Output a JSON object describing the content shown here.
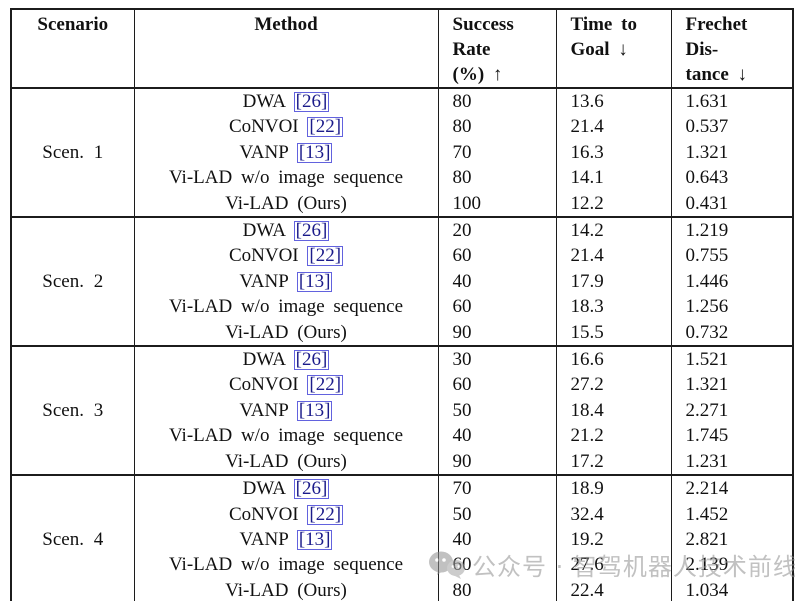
{
  "table": {
    "headers": {
      "scenario": "Scenario",
      "method": "Method",
      "success_rate": "Success\nRate\n(%) ↑",
      "time_to_goal": "Time to\nGoal ↓",
      "frechet_distance": "Frechet\nDis-\ntance ↓"
    },
    "scenarios": [
      {
        "label": "Scen. 1",
        "rows": [
          {
            "method": "DWA",
            "cite": "[26]",
            "success_rate": "80",
            "time_to_goal": "13.6",
            "frechet": "1.631"
          },
          {
            "method": "CoNVOI",
            "cite": "[22]",
            "success_rate": "80",
            "time_to_goal": "21.4",
            "frechet": "0.537"
          },
          {
            "method": "VANP",
            "cite": "[13]",
            "success_rate": "70",
            "time_to_goal": "16.3",
            "frechet": "1.321"
          },
          {
            "method": "Vi-LAD w/o image sequence",
            "cite": "",
            "success_rate": "80",
            "time_to_goal": "14.1",
            "frechet": "0.643"
          },
          {
            "method": "Vi-LAD (Ours)",
            "cite": "",
            "success_rate": "100",
            "time_to_goal": "12.2",
            "frechet": "0.431"
          }
        ]
      },
      {
        "label": "Scen. 2",
        "rows": [
          {
            "method": "DWA",
            "cite": "[26]",
            "success_rate": "20",
            "time_to_goal": "14.2",
            "frechet": "1.219"
          },
          {
            "method": "CoNVOI",
            "cite": "[22]",
            "success_rate": "60",
            "time_to_goal": "21.4",
            "frechet": "0.755"
          },
          {
            "method": "VANP",
            "cite": "[13]",
            "success_rate": "40",
            "time_to_goal": "17.9",
            "frechet": "1.446"
          },
          {
            "method": "Vi-LAD w/o image sequence",
            "cite": "",
            "success_rate": "60",
            "time_to_goal": "18.3",
            "frechet": "1.256"
          },
          {
            "method": "Vi-LAD (Ours)",
            "cite": "",
            "success_rate": "90",
            "time_to_goal": "15.5",
            "frechet": "0.732"
          }
        ]
      },
      {
        "label": "Scen. 3",
        "rows": [
          {
            "method": "DWA",
            "cite": "[26]",
            "success_rate": "30",
            "time_to_goal": "16.6",
            "frechet": "1.521"
          },
          {
            "method": "CoNVOI",
            "cite": "[22]",
            "success_rate": "60",
            "time_to_goal": "27.2",
            "frechet": "1.321"
          },
          {
            "method": "VANP",
            "cite": "[13]",
            "success_rate": "50",
            "time_to_goal": "18.4",
            "frechet": "2.271"
          },
          {
            "method": "Vi-LAD w/o image sequence",
            "cite": "",
            "success_rate": "40",
            "time_to_goal": "21.2",
            "frechet": "1.745"
          },
          {
            "method": "Vi-LAD (Ours)",
            "cite": "",
            "success_rate": "90",
            "time_to_goal": "17.2",
            "frechet": "1.231"
          }
        ]
      },
      {
        "label": "Scen. 4",
        "rows": [
          {
            "method": "DWA",
            "cite": "[26]",
            "success_rate": "70",
            "time_to_goal": "18.9",
            "frechet": "2.214"
          },
          {
            "method": "CoNVOI",
            "cite": "[22]",
            "success_rate": "50",
            "time_to_goal": "32.4",
            "frechet": "1.452"
          },
          {
            "method": "VANP",
            "cite": "[13]",
            "success_rate": "40",
            "time_to_goal": "19.2",
            "frechet": "2.821"
          },
          {
            "method": "Vi-LAD w/o image sequence",
            "cite": "",
            "success_rate": "60",
            "time_to_goal": "27.6",
            "frechet": "2.139"
          },
          {
            "method": "Vi-LAD (Ours)",
            "cite": "",
            "success_rate": "80",
            "time_to_goal": "22.4",
            "frechet": "1.034"
          }
        ]
      }
    ]
  },
  "watermark": {
    "icon": "wechat-icon",
    "text": "公众号 · 智驾机器人技术前线"
  },
  "colors": {
    "cite_text": "#1b1b8a",
    "cite_border": "#6262de",
    "table_border": "#1c1c1c",
    "watermark_gray": "#8f8f8f"
  }
}
